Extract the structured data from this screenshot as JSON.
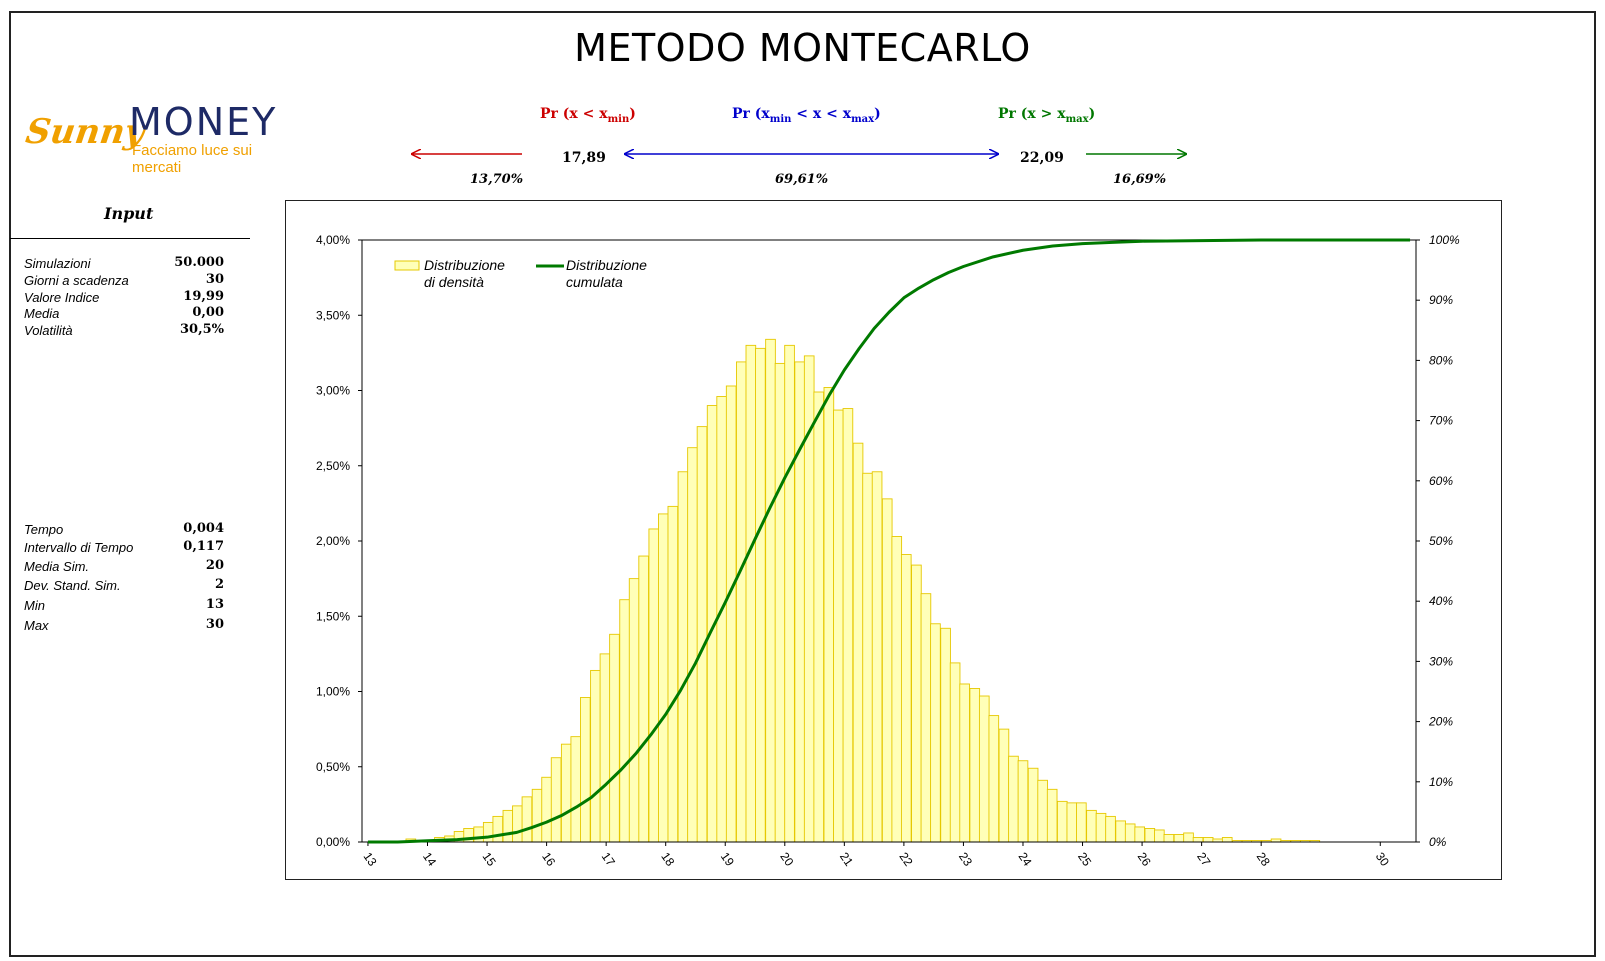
{
  "page": {
    "title": "METODO MONTECARLO"
  },
  "logo": {
    "sunny": "Sunny",
    "money": "MONEY",
    "tagline": "Facciamo luce sui mercati"
  },
  "probabilities": {
    "left": {
      "label_prefix": "Pr (x < x",
      "label_sub": "min",
      "label_suffix": ")",
      "value": "13,70%",
      "color": "#cc0000"
    },
    "mid": {
      "label_prefix": "Pr (x",
      "label_sub1": "min",
      "label_middle": " < x < x",
      "label_sub2": "max",
      "label_suffix": ")",
      "value": "69,61%",
      "color": "#0000cc"
    },
    "right": {
      "label_prefix": "Pr (x > x",
      "label_sub": "max",
      "label_suffix": ")",
      "value": "16,69%",
      "color": "#007700"
    },
    "xmin": "17,89",
    "xmax": "22,09"
  },
  "input": {
    "title": "Input",
    "params1": [
      {
        "label": "Simulazioni",
        "value": "50.000"
      },
      {
        "label": "Giorni a scadenza",
        "value": "30"
      },
      {
        "label": "Valore Indice",
        "value": "19,99"
      },
      {
        "label": "Media",
        "value": "0,00"
      },
      {
        "label": "Volatilità",
        "value": "30,5%"
      }
    ],
    "params2": [
      {
        "label": "Tempo",
        "value": "0,004"
      },
      {
        "label": "Intervallo di Tempo",
        "value": "0,117"
      },
      {
        "label": "Media Sim.",
        "value": "20"
      },
      {
        "label": "Dev. Stand. Sim.",
        "value": "2"
      },
      {
        "label": "Min",
        "value": "13"
      },
      {
        "label": "Max",
        "value": "30"
      }
    ]
  },
  "chart_data": {
    "type": "bar",
    "title": "",
    "xlabel": "",
    "ylabel": "",
    "xlim": [
      12.9,
      30.6
    ],
    "ylim": [
      0,
      0.04
    ],
    "y2lim": [
      0,
      1
    ],
    "bar_width": 0.163,
    "grid": false,
    "legend_position": "top-left",
    "x_ticks": [
      13,
      14,
      15,
      16,
      17,
      18,
      19,
      20,
      21,
      22,
      23,
      24,
      25,
      26,
      27,
      28,
      30
    ],
    "y_ticks": [
      "0,00%",
      "0,50%",
      "1,00%",
      "1,50%",
      "2,00%",
      "2,50%",
      "3,00%",
      "3,50%",
      "4,00%"
    ],
    "y2_ticks": [
      "0%",
      "10%",
      "20%",
      "30%",
      "40%",
      "50%",
      "60%",
      "70%",
      "80%",
      "90%",
      "100%"
    ],
    "series": [
      {
        "name": "Distribuzione di densità",
        "kind": "bar",
        "color_fill": "#ffffb8",
        "color_edge": "#e6c800",
        "x": [
          13.72,
          13.88,
          14.04,
          14.2,
          14.37,
          14.53,
          14.69,
          14.86,
          15.02,
          15.18,
          15.35,
          15.51,
          15.67,
          15.84,
          16.0,
          16.16,
          16.33,
          16.49,
          16.65,
          16.82,
          16.98,
          17.14,
          17.31,
          17.47,
          17.63,
          17.8,
          17.96,
          18.12,
          18.29,
          18.45,
          18.61,
          18.78,
          18.94,
          19.1,
          19.27,
          19.43,
          19.59,
          19.76,
          19.92,
          20.08,
          20.25,
          20.41,
          20.57,
          20.74,
          20.9,
          21.06,
          21.23,
          21.39,
          21.55,
          21.72,
          21.88,
          22.04,
          22.21,
          22.37,
          22.53,
          22.7,
          22.86,
          23.02,
          23.19,
          23.35,
          23.51,
          23.68,
          23.84,
          24.0,
          24.17,
          24.33,
          24.49,
          24.66,
          24.82,
          24.98,
          25.15,
          25.31,
          25.47,
          25.64,
          25.8,
          25.96,
          26.13,
          26.29,
          26.45,
          26.62,
          26.78,
          26.94,
          27.11,
          27.27,
          27.43,
          27.6,
          27.76,
          27.92,
          28.09,
          28.25,
          28.41,
          28.58,
          28.74,
          28.9
        ],
        "values": [
          0.0002,
          0.0001,
          0.0001,
          0.0003,
          0.0004,
          0.0007,
          0.0009,
          0.001,
          0.0013,
          0.0017,
          0.0021,
          0.0024,
          0.003,
          0.0035,
          0.0043,
          0.0056,
          0.0065,
          0.007,
          0.0096,
          0.0114,
          0.0125,
          0.0138,
          0.0161,
          0.0175,
          0.019,
          0.0208,
          0.0218,
          0.0223,
          0.0246,
          0.0262,
          0.0276,
          0.029,
          0.0296,
          0.0303,
          0.0319,
          0.033,
          0.0328,
          0.0334,
          0.0318,
          0.033,
          0.0319,
          0.0323,
          0.0299,
          0.0302,
          0.0287,
          0.0288,
          0.0265,
          0.0245,
          0.0246,
          0.0228,
          0.0203,
          0.0191,
          0.0184,
          0.0165,
          0.0145,
          0.0142,
          0.0119,
          0.0105,
          0.0102,
          0.0097,
          0.0084,
          0.0075,
          0.0057,
          0.0054,
          0.0049,
          0.0041,
          0.0035,
          0.0027,
          0.0026,
          0.0026,
          0.0021,
          0.0019,
          0.0017,
          0.0014,
          0.0012,
          0.001,
          0.0009,
          0.0008,
          0.0005,
          0.0005,
          0.0006,
          0.0003,
          0.0003,
          0.0002,
          0.0003,
          0.0001,
          0.0001,
          0.0001,
          0.0001,
          0.0002,
          0.0001,
          0.0001,
          0.0001,
          0.0001
        ]
      },
      {
        "name": "Distribuzione cumulata",
        "kind": "line",
        "axis": "right",
        "color": "#007a00",
        "x": [
          13.0,
          13.5,
          14.0,
          14.5,
          15.0,
          15.25,
          15.5,
          15.75,
          16.0,
          16.25,
          16.5,
          16.75,
          17.0,
          17.25,
          17.5,
          17.75,
          18.0,
          18.25,
          18.5,
          18.75,
          19.0,
          19.25,
          19.5,
          19.75,
          20.0,
          20.25,
          20.5,
          20.75,
          21.0,
          21.25,
          21.5,
          21.75,
          22.0,
          22.25,
          22.5,
          22.75,
          23.0,
          23.5,
          24.0,
          24.5,
          25.0,
          25.5,
          26.0,
          27.0,
          28.0,
          30.5
        ],
        "values": [
          0.0,
          0.0,
          0.002,
          0.004,
          0.008,
          0.012,
          0.016,
          0.024,
          0.033,
          0.044,
          0.058,
          0.074,
          0.096,
          0.12,
          0.147,
          0.178,
          0.212,
          0.252,
          0.297,
          0.348,
          0.398,
          0.45,
          0.503,
          0.555,
          0.605,
          0.652,
          0.698,
          0.743,
          0.784,
          0.82,
          0.853,
          0.88,
          0.904,
          0.92,
          0.934,
          0.946,
          0.956,
          0.972,
          0.983,
          0.99,
          0.994,
          0.996,
          0.998,
          0.999,
          1.0,
          1.0
        ]
      }
    ]
  }
}
